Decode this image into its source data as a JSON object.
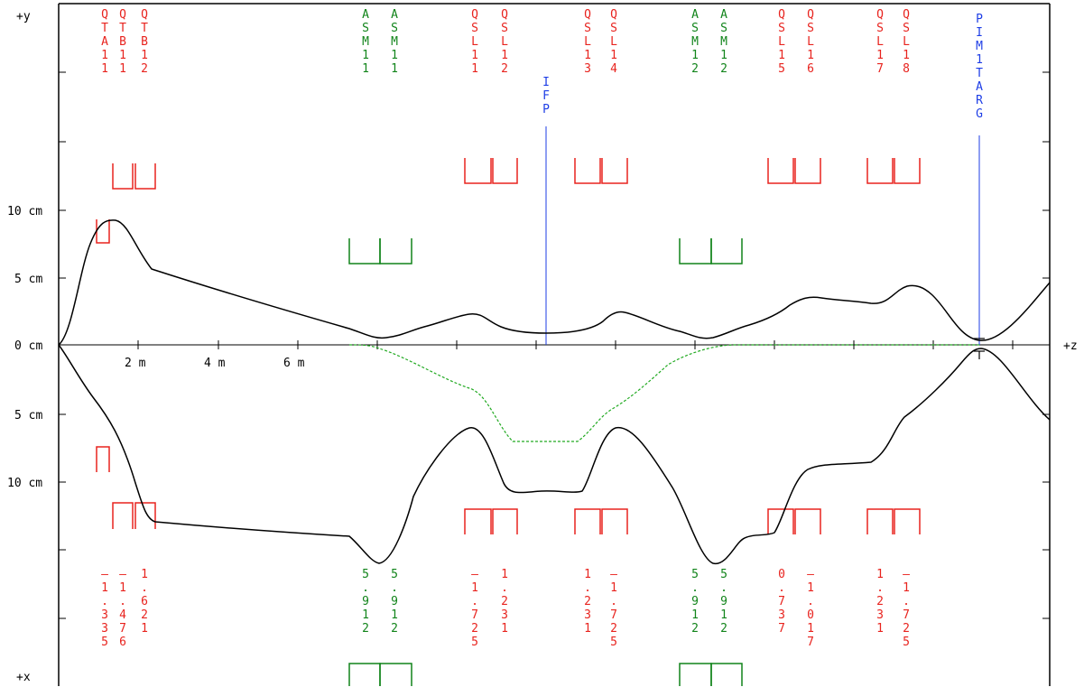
{
  "axes": {
    "y_label": "+y",
    "x_label": "+x",
    "z_label": "+z",
    "y_ticks": [
      "10 cm",
      "5 cm",
      "0 cm"
    ],
    "x_ticks": [
      "5 cm",
      "10 cm"
    ],
    "z_ticks": [
      "2 m",
      "4 m",
      "6 m"
    ]
  },
  "colors": {
    "quad": "#e8231e",
    "sext": "#11841a",
    "marker": "#1e3ee6",
    "envelope": "#000000",
    "dispersion": "#22aa22"
  },
  "elements_top": [
    {
      "label": "QTA11",
      "color": "quad"
    },
    {
      "label": "QTB11",
      "color": "quad"
    },
    {
      "label": "QTB12",
      "color": "quad"
    },
    {
      "label": "ASM11",
      "color": "sext"
    },
    {
      "label": "ASM11",
      "color": "sext"
    },
    {
      "label": "QSL11",
      "color": "quad"
    },
    {
      "label": "QSL12",
      "color": "quad"
    },
    {
      "label": "QSL13",
      "color": "quad"
    },
    {
      "label": "QSL14",
      "color": "quad"
    },
    {
      "label": "ASM12",
      "color": "sext"
    },
    {
      "label": "ASM12",
      "color": "sext"
    },
    {
      "label": "QSL15",
      "color": "quad"
    },
    {
      "label": "QSL16",
      "color": "quad"
    },
    {
      "label": "QSL17",
      "color": "quad"
    },
    {
      "label": "QSL18",
      "color": "quad"
    }
  ],
  "markers": [
    {
      "label": "IFP"
    },
    {
      "label": "PIM1TARG"
    }
  ],
  "elements_bottom": [
    {
      "label": "-1.335",
      "color": "quad"
    },
    {
      "label": "-1.476",
      "color": "quad"
    },
    {
      "label": "1.621",
      "color": "quad"
    },
    {
      "label": "5.912",
      "color": "sext"
    },
    {
      "label": "5.912",
      "color": "sext"
    },
    {
      "label": "-1.725",
      "color": "quad"
    },
    {
      "label": "1.231",
      "color": "quad"
    },
    {
      "label": "1.231",
      "color": "quad"
    },
    {
      "label": "-1.725",
      "color": "quad"
    },
    {
      "label": "5.912",
      "color": "sext"
    },
    {
      "label": "5.912",
      "color": "sext"
    },
    {
      "label": "0.737",
      "color": "quad"
    },
    {
      "label": "-1.017",
      "color": "quad"
    },
    {
      "label": "1.231",
      "color": "quad"
    },
    {
      "label": "-1.725",
      "color": "quad"
    }
  ]
}
